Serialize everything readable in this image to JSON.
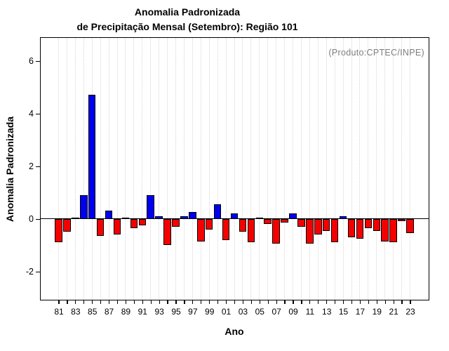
{
  "title_line1": "Anomalia Padronizada",
  "title_line2": "de Precipitação Mensal (Setembro): Região 101",
  "annotation": "(Produto:CPTEC/INPE)",
  "chart_data": {
    "type": "bar",
    "title": "Anomalia Padronizada de Precipitação Mensal (Setembro): Região 101",
    "xlabel": "Ano",
    "ylabel": "Anomalia Padronizada",
    "legend": "none",
    "grid": "vertical dotted gridline at every year",
    "ylim": [
      -3.05,
      6.87
    ],
    "yticks": [
      -2,
      0,
      2,
      4,
      6
    ],
    "ytick_labels": [
      "-2",
      "0",
      "2",
      "4",
      "6"
    ],
    "xtick_labels_every_2_years": [
      "81",
      "83",
      "85",
      "87",
      "89",
      "91",
      "93",
      "95",
      "97",
      "99",
      "01",
      "03",
      "05",
      "07",
      "09",
      "11",
      "13",
      "15",
      "17",
      "19",
      "21",
      "23"
    ],
    "years": [
      1981,
      1982,
      1983,
      1984,
      1985,
      1986,
      1987,
      1988,
      1989,
      1990,
      1991,
      1992,
      1993,
      1994,
      1995,
      1996,
      1997,
      1998,
      1999,
      2000,
      2001,
      2002,
      2003,
      2004,
      2005,
      2006,
      2007,
      2008,
      2009,
      2010,
      2011,
      2012,
      2013,
      2014,
      2015,
      2016,
      2017,
      2018,
      2019,
      2020,
      2021,
      2022,
      2023
    ],
    "values": [
      -0.9,
      -0.5,
      0.05,
      0.9,
      4.7,
      -0.65,
      0.3,
      -0.6,
      0.05,
      -0.35,
      -0.25,
      0.9,
      0.1,
      -1.0,
      -0.3,
      0.1,
      0.25,
      -0.85,
      -0.4,
      0.55,
      -0.8,
      0.2,
      -0.5,
      -0.9,
      0.05,
      -0.2,
      -0.95,
      -0.15,
      0.2,
      -0.3,
      -0.95,
      -0.6,
      -0.45,
      -0.9,
      0.1,
      -0.7,
      -0.75,
      -0.35,
      -0.45,
      -0.85,
      -0.9,
      -0.1,
      -0.55
    ],
    "positive_color": "#0000ee",
    "negative_color": "#f50000",
    "bar_border_color": "#000000",
    "grid_color": "#d6d6d6",
    "annotation_color": "#7d7d7d",
    "axis_color": "#000000"
  }
}
